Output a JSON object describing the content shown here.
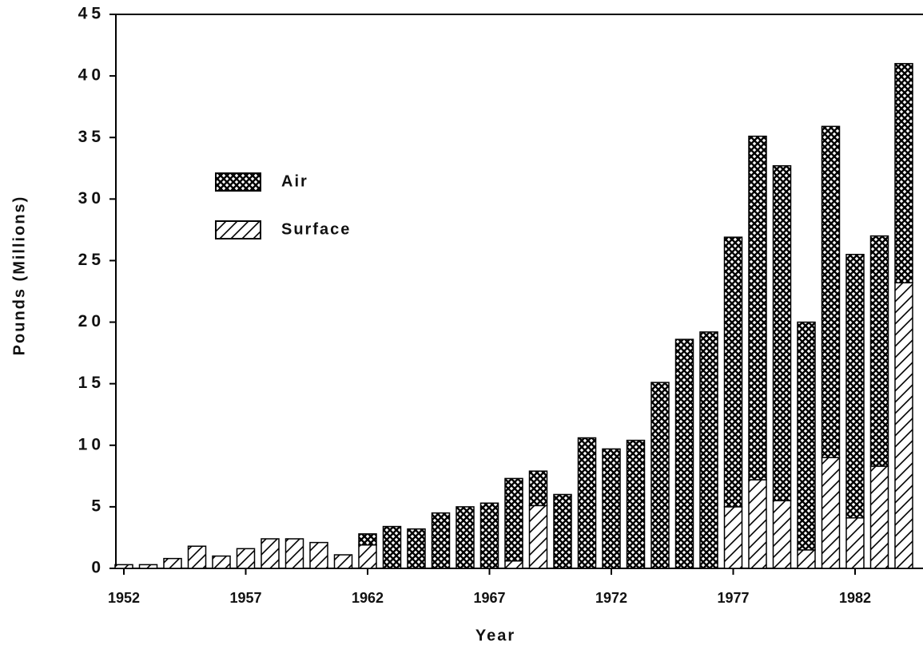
{
  "chart_data": {
    "type": "stacked_bar",
    "x_label": "Year",
    "y_label": "Pounds   (Millions)",
    "categories": [
      1952,
      null,
      null,
      null,
      null,
      1957,
      null,
      null,
      null,
      null,
      1962,
      null,
      null,
      null,
      null,
      1967,
      null,
      null,
      null,
      null,
      1972,
      null,
      null,
      null,
      null,
      1977,
      null,
      null,
      null,
      null,
      1982,
      null,
      null
    ],
    "series": [
      {
        "name": "Air",
        "color": "#000000",
        "values": [
          0,
          0,
          0,
          0,
          0,
          0,
          0,
          0,
          0,
          0,
          0.9,
          3.4,
          3.2,
          4.5,
          5.0,
          5.3,
          6.7,
          2.8,
          6.0,
          10.6,
          9.7,
          10.4,
          15.1,
          18.6,
          19.2,
          21.9,
          27.9,
          27.2,
          18.5,
          26.9,
          21.4,
          18.7,
          17.8
        ]
      },
      {
        "name": "Surface",
        "color": "#000000",
        "values": [
          0.3,
          0.3,
          0.8,
          1.8,
          1.0,
          1.6,
          2.4,
          2.4,
          2.1,
          1.1,
          1.9,
          0,
          0,
          0,
          0,
          0,
          0.6,
          5.1,
          0,
          0,
          0,
          0,
          0,
          0,
          0,
          5.0,
          7.2,
          5.5,
          1.5,
          9.0,
          4.1,
          8.3,
          23.2
        ]
      }
    ],
    "ylim": [
      0,
      45
    ],
    "yticks": [
      0,
      5,
      10,
      15,
      20,
      25,
      30,
      35,
      40,
      45
    ],
    "legend": "upper left"
  }
}
